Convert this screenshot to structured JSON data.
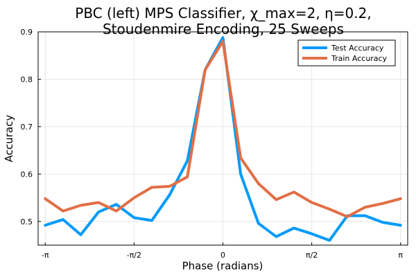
{
  "chart_data": {
    "type": "line",
    "title_line1": "PBC (left)  MPS Classifier, χ_max=2, η=0.2,",
    "title_line2": "Stoudenmire Encoding, 25 Sweeps",
    "xlabel": "Phase (radians)",
    "ylabel": "Accuracy",
    "xlim": [
      -3.2673,
      3.2673
    ],
    "ylim": [
      0.45,
      0.9
    ],
    "x_ticks": [
      {
        "value": -3.14159,
        "label": "-π"
      },
      {
        "value": -1.5708,
        "label": "-π/2"
      },
      {
        "value": 0,
        "label": "0"
      },
      {
        "value": 1.5708,
        "label": "π/2"
      },
      {
        "value": 3.14159,
        "label": "π"
      }
    ],
    "y_ticks": [
      0.5,
      0.6,
      0.7,
      0.8,
      0.9
    ],
    "grid": true,
    "legend_position": "top-right",
    "x": [
      -3.14159,
      -2.82743,
      -2.51327,
      -2.19911,
      -1.88496,
      -1.5708,
      -1.25664,
      -0.94248,
      -0.62832,
      -0.31416,
      0,
      0.31416,
      0.62832,
      0.94248,
      1.25664,
      1.5708,
      1.88496,
      2.19911,
      2.51327,
      2.82743,
      3.14159
    ],
    "series": [
      {
        "name": "Test Accuracy",
        "color": "#009af9",
        "values": [
          0.492,
          0.504,
          0.472,
          0.52,
          0.536,
          0.508,
          0.502,
          0.556,
          0.628,
          0.82,
          0.888,
          0.6,
          0.496,
          0.468,
          0.486,
          0.474,
          0.46,
          0.512,
          0.512,
          0.498,
          0.492
        ]
      },
      {
        "name": "Train Accuracy",
        "color": "#e26f46",
        "values": [
          0.548,
          0.522,
          0.534,
          0.54,
          0.522,
          0.55,
          0.572,
          0.574,
          0.594,
          0.82,
          0.88,
          0.634,
          0.58,
          0.546,
          0.562,
          0.54,
          0.526,
          0.51,
          0.53,
          0.538,
          0.548
        ]
      }
    ]
  }
}
